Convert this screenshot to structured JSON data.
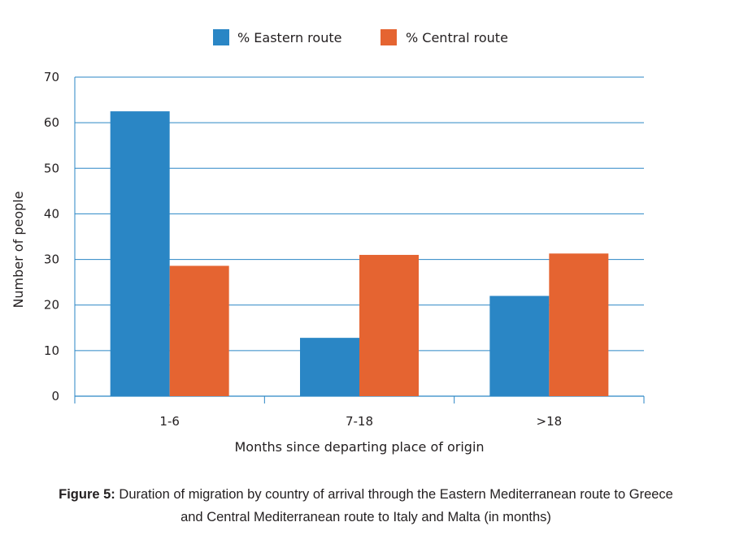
{
  "chart_data": {
    "type": "bar",
    "categories": [
      "1-6",
      "7-18",
      ">18"
    ],
    "series": [
      {
        "name": "% Eastern route",
        "color": "#2a86c5",
        "values": [
          62.5,
          12.8,
          22.0
        ]
      },
      {
        "name": "% Central route",
        "color": "#e56431",
        "values": [
          28.6,
          31.0,
          31.3
        ]
      }
    ],
    "xlabel": "Months since departing place of origin",
    "ylabel": "Number of people",
    "ylim": [
      0,
      70
    ],
    "yticks": [
      0,
      10,
      20,
      30,
      40,
      50,
      60,
      70
    ],
    "grid": true,
    "gridColor": "#2a86c5",
    "legend": "top-center"
  },
  "caption": {
    "label": "Figure 5:",
    "text": "Duration of migration by country of arrival through the Eastern Mediterranean route to Greece and Central Mediterranean route to Italy and Malta (in months)"
  }
}
